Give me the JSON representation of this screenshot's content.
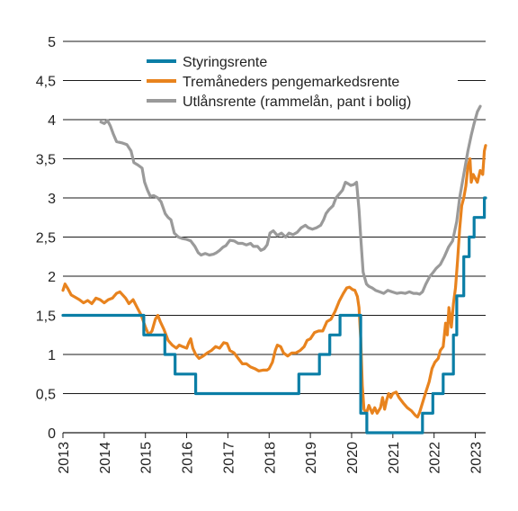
{
  "chart_data": {
    "type": "line",
    "title": "",
    "xlabel": "",
    "ylabel": "",
    "xlim": [
      2013.0,
      2023.25
    ],
    "ylim": [
      0,
      5
    ],
    "grid": "horizontal",
    "legend_position": "top-center",
    "yticks": [
      "0",
      "0,5",
      "1",
      "1,5",
      "2",
      "2,5",
      "3",
      "3,5",
      "4",
      "4,5",
      "5"
    ],
    "xticks": [
      "2013",
      "2014",
      "2015",
      "2016",
      "2017",
      "2018",
      "2019",
      "2020",
      "2021",
      "2022",
      "2023"
    ],
    "series": [
      {
        "name": "Styringsrente",
        "color": "#0b7ea6",
        "step": true,
        "points": [
          [
            2013.0,
            1.5
          ],
          [
            2014.96,
            1.25
          ],
          [
            2015.47,
            1.0
          ],
          [
            2015.72,
            0.75
          ],
          [
            2016.22,
            0.5
          ],
          [
            2018.72,
            0.75
          ],
          [
            2019.22,
            1.0
          ],
          [
            2019.47,
            1.25
          ],
          [
            2019.72,
            1.5
          ],
          [
            2020.22,
            0.25
          ],
          [
            2020.37,
            0.0
          ],
          [
            2021.72,
            0.25
          ],
          [
            2021.97,
            0.5
          ],
          [
            2022.22,
            0.75
          ],
          [
            2022.47,
            1.25
          ],
          [
            2022.55,
            1.75
          ],
          [
            2022.72,
            2.25
          ],
          [
            2022.85,
            2.5
          ],
          [
            2022.97,
            2.75
          ],
          [
            2023.22,
            3.0
          ],
          [
            2023.25,
            3.0
          ]
        ]
      },
      {
        "name": "Tremåneders pengemarkedsrente",
        "color": "#e8831e",
        "step": false,
        "points": [
          [
            2013.0,
            1.82
          ],
          [
            2013.05,
            1.9
          ],
          [
            2013.12,
            1.84
          ],
          [
            2013.2,
            1.76
          ],
          [
            2013.3,
            1.73
          ],
          [
            2013.4,
            1.7
          ],
          [
            2013.5,
            1.66
          ],
          [
            2013.6,
            1.69
          ],
          [
            2013.7,
            1.65
          ],
          [
            2013.8,
            1.72
          ],
          [
            2013.9,
            1.7
          ],
          [
            2014.0,
            1.66
          ],
          [
            2014.1,
            1.7
          ],
          [
            2014.2,
            1.72
          ],
          [
            2014.3,
            1.78
          ],
          [
            2014.38,
            1.8
          ],
          [
            2014.45,
            1.76
          ],
          [
            2014.52,
            1.72
          ],
          [
            2014.6,
            1.65
          ],
          [
            2014.7,
            1.7
          ],
          [
            2014.8,
            1.6
          ],
          [
            2014.9,
            1.5
          ],
          [
            2015.0,
            1.35
          ],
          [
            2015.08,
            1.25
          ],
          [
            2015.16,
            1.3
          ],
          [
            2015.24,
            1.45
          ],
          [
            2015.3,
            1.5
          ],
          [
            2015.36,
            1.42
          ],
          [
            2015.45,
            1.32
          ],
          [
            2015.55,
            1.18
          ],
          [
            2015.65,
            1.12
          ],
          [
            2015.75,
            1.08
          ],
          [
            2015.82,
            1.12
          ],
          [
            2015.9,
            1.1
          ],
          [
            2016.0,
            1.08
          ],
          [
            2016.05,
            1.15
          ],
          [
            2016.1,
            1.2
          ],
          [
            2016.15,
            1.08
          ],
          [
            2016.22,
            1.0
          ],
          [
            2016.3,
            0.95
          ],
          [
            2016.4,
            0.98
          ],
          [
            2016.5,
            1.02
          ],
          [
            2016.6,
            1.05
          ],
          [
            2016.7,
            1.1
          ],
          [
            2016.8,
            1.08
          ],
          [
            2016.9,
            1.15
          ],
          [
            2016.98,
            1.14
          ],
          [
            2017.05,
            1.05
          ],
          [
            2017.15,
            1.02
          ],
          [
            2017.25,
            0.95
          ],
          [
            2017.35,
            0.88
          ],
          [
            2017.45,
            0.88
          ],
          [
            2017.55,
            0.84
          ],
          [
            2017.65,
            0.82
          ],
          [
            2017.75,
            0.79
          ],
          [
            2017.85,
            0.8
          ],
          [
            2017.95,
            0.8
          ],
          [
            2018.0,
            0.82
          ],
          [
            2018.08,
            0.9
          ],
          [
            2018.15,
            1.05
          ],
          [
            2018.2,
            1.12
          ],
          [
            2018.28,
            1.1
          ],
          [
            2018.35,
            1.02
          ],
          [
            2018.45,
            0.98
          ],
          [
            2018.55,
            1.02
          ],
          [
            2018.65,
            1.02
          ],
          [
            2018.75,
            1.05
          ],
          [
            2018.85,
            1.1
          ],
          [
            2018.92,
            1.18
          ],
          [
            2019.0,
            1.2
          ],
          [
            2019.1,
            1.28
          ],
          [
            2019.2,
            1.3
          ],
          [
            2019.3,
            1.3
          ],
          [
            2019.4,
            1.42
          ],
          [
            2019.5,
            1.45
          ],
          [
            2019.6,
            1.55
          ],
          [
            2019.7,
            1.68
          ],
          [
            2019.8,
            1.78
          ],
          [
            2019.88,
            1.85
          ],
          [
            2019.95,
            1.86
          ],
          [
            2020.02,
            1.83
          ],
          [
            2020.08,
            1.82
          ],
          [
            2020.14,
            1.74
          ],
          [
            2020.18,
            1.6
          ],
          [
            2020.22,
            1.2
          ],
          [
            2020.26,
            0.6
          ],
          [
            2020.3,
            0.3
          ],
          [
            2020.36,
            0.25
          ],
          [
            2020.42,
            0.35
          ],
          [
            2020.5,
            0.25
          ],
          [
            2020.56,
            0.32
          ],
          [
            2020.62,
            0.25
          ],
          [
            2020.7,
            0.32
          ],
          [
            2020.75,
            0.45
          ],
          [
            2020.8,
            0.3
          ],
          [
            2020.85,
            0.42
          ],
          [
            2020.9,
            0.5
          ],
          [
            2020.95,
            0.45
          ],
          [
            2021.0,
            0.5
          ],
          [
            2021.08,
            0.52
          ],
          [
            2021.15,
            0.45
          ],
          [
            2021.25,
            0.38
          ],
          [
            2021.35,
            0.32
          ],
          [
            2021.45,
            0.28
          ],
          [
            2021.55,
            0.22
          ],
          [
            2021.6,
            0.2
          ],
          [
            2021.65,
            0.26
          ],
          [
            2021.72,
            0.38
          ],
          [
            2021.8,
            0.52
          ],
          [
            2021.88,
            0.65
          ],
          [
            2021.95,
            0.82
          ],
          [
            2022.02,
            0.9
          ],
          [
            2022.1,
            0.95
          ],
          [
            2022.15,
            1.05
          ],
          [
            2022.22,
            1.1
          ],
          [
            2022.28,
            1.4
          ],
          [
            2022.32,
            1.25
          ],
          [
            2022.36,
            1.6
          ],
          [
            2022.42,
            1.35
          ],
          [
            2022.47,
            1.65
          ],
          [
            2022.52,
            1.85
          ],
          [
            2022.57,
            2.2
          ],
          [
            2022.62,
            2.6
          ],
          [
            2022.67,
            2.9
          ],
          [
            2022.72,
            3.0
          ],
          [
            2022.77,
            3.15
          ],
          [
            2022.82,
            3.4
          ],
          [
            2022.87,
            3.5
          ],
          [
            2022.9,
            3.2
          ],
          [
            2022.95,
            3.3
          ],
          [
            2023.0,
            3.25
          ],
          [
            2023.05,
            3.2
          ],
          [
            2023.12,
            3.35
          ],
          [
            2023.18,
            3.3
          ],
          [
            2023.22,
            3.6
          ],
          [
            2023.25,
            3.67
          ]
        ]
      },
      {
        "name": "Utlånsrente (rammelån, pant i bolig)",
        "color": "#9a9a9a",
        "step": false,
        "points": [
          [
            2013.92,
            3.97
          ],
          [
            2014.0,
            3.95
          ],
          [
            2014.08,
            3.99
          ],
          [
            2014.15,
            3.92
          ],
          [
            2014.22,
            3.82
          ],
          [
            2014.3,
            3.72
          ],
          [
            2014.45,
            3.7
          ],
          [
            2014.55,
            3.68
          ],
          [
            2014.65,
            3.6
          ],
          [
            2014.72,
            3.45
          ],
          [
            2014.82,
            3.42
          ],
          [
            2014.92,
            3.38
          ],
          [
            2014.98,
            3.2
          ],
          [
            2015.05,
            3.1
          ],
          [
            2015.12,
            3.02
          ],
          [
            2015.2,
            3.03
          ],
          [
            2015.3,
            3.0
          ],
          [
            2015.38,
            2.95
          ],
          [
            2015.48,
            2.8
          ],
          [
            2015.55,
            2.75
          ],
          [
            2015.62,
            2.72
          ],
          [
            2015.7,
            2.55
          ],
          [
            2015.8,
            2.5
          ],
          [
            2015.9,
            2.48
          ],
          [
            2016.0,
            2.47
          ],
          [
            2016.1,
            2.45
          ],
          [
            2016.2,
            2.38
          ],
          [
            2016.28,
            2.3
          ],
          [
            2016.35,
            2.27
          ],
          [
            2016.45,
            2.29
          ],
          [
            2016.55,
            2.27
          ],
          [
            2016.65,
            2.28
          ],
          [
            2016.72,
            2.3
          ],
          [
            2016.8,
            2.33
          ],
          [
            2016.88,
            2.37
          ],
          [
            2016.95,
            2.39
          ],
          [
            2017.05,
            2.46
          ],
          [
            2017.15,
            2.45
          ],
          [
            2017.25,
            2.42
          ],
          [
            2017.35,
            2.42
          ],
          [
            2017.45,
            2.4
          ],
          [
            2017.55,
            2.42
          ],
          [
            2017.62,
            2.38
          ],
          [
            2017.72,
            2.38
          ],
          [
            2017.8,
            2.33
          ],
          [
            2017.88,
            2.35
          ],
          [
            2017.95,
            2.4
          ],
          [
            2018.02,
            2.55
          ],
          [
            2018.1,
            2.58
          ],
          [
            2018.2,
            2.52
          ],
          [
            2018.3,
            2.55
          ],
          [
            2018.4,
            2.5
          ],
          [
            2018.48,
            2.55
          ],
          [
            2018.58,
            2.53
          ],
          [
            2018.68,
            2.56
          ],
          [
            2018.78,
            2.62
          ],
          [
            2018.88,
            2.65
          ],
          [
            2018.95,
            2.62
          ],
          [
            2019.05,
            2.6
          ],
          [
            2019.15,
            2.62
          ],
          [
            2019.25,
            2.65
          ],
          [
            2019.32,
            2.72
          ],
          [
            2019.38,
            2.8
          ],
          [
            2019.45,
            2.85
          ],
          [
            2019.55,
            2.9
          ],
          [
            2019.62,
            3.0
          ],
          [
            2019.7,
            3.05
          ],
          [
            2019.78,
            3.1
          ],
          [
            2019.85,
            3.2
          ],
          [
            2019.92,
            3.18
          ],
          [
            2019.98,
            3.16
          ],
          [
            2020.05,
            3.17
          ],
          [
            2020.12,
            3.2
          ],
          [
            2020.18,
            2.85
          ],
          [
            2020.22,
            2.5
          ],
          [
            2020.28,
            2.05
          ],
          [
            2020.36,
            1.9
          ],
          [
            2020.42,
            1.87
          ],
          [
            2020.5,
            1.85
          ],
          [
            2020.58,
            1.82
          ],
          [
            2020.68,
            1.8
          ],
          [
            2020.78,
            1.78
          ],
          [
            2020.88,
            1.82
          ],
          [
            2020.98,
            1.8
          ],
          [
            2021.1,
            1.78
          ],
          [
            2021.2,
            1.79
          ],
          [
            2021.3,
            1.78
          ],
          [
            2021.4,
            1.8
          ],
          [
            2021.5,
            1.78
          ],
          [
            2021.58,
            1.78
          ],
          [
            2021.65,
            1.77
          ],
          [
            2021.72,
            1.8
          ],
          [
            2021.8,
            1.9
          ],
          [
            2021.9,
            2.0
          ],
          [
            2021.98,
            2.05
          ],
          [
            2022.05,
            2.1
          ],
          [
            2022.15,
            2.15
          ],
          [
            2022.25,
            2.25
          ],
          [
            2022.35,
            2.37
          ],
          [
            2022.45,
            2.45
          ],
          [
            2022.55,
            2.7
          ],
          [
            2022.62,
            3.0
          ],
          [
            2022.72,
            3.3
          ],
          [
            2022.82,
            3.6
          ],
          [
            2022.9,
            3.8
          ],
          [
            2022.97,
            3.95
          ],
          [
            2023.05,
            4.1
          ],
          [
            2023.12,
            4.17
          ]
        ]
      }
    ]
  }
}
